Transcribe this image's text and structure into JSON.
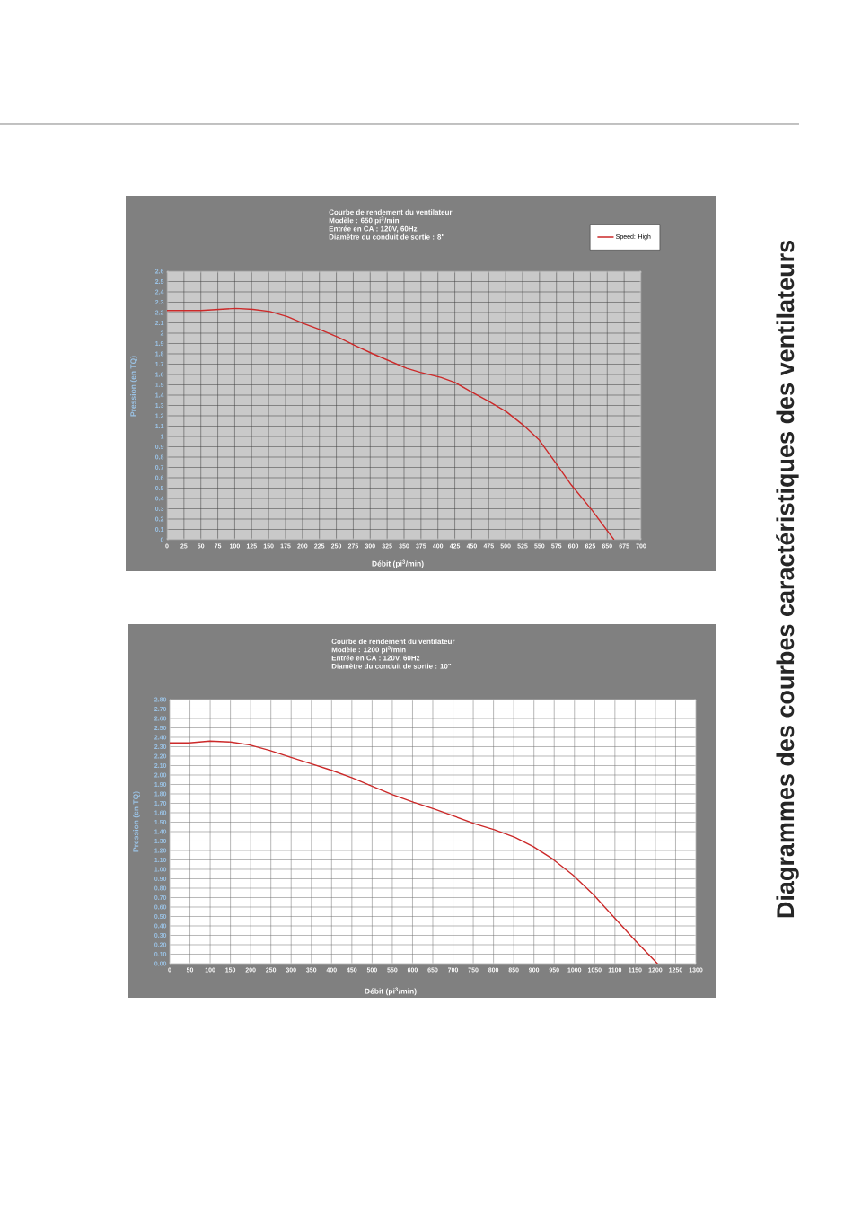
{
  "chart_data": [
    {
      "type": "line",
      "title": "Courbe de rendement du ventilateur",
      "subtitle": "Modèle : 650 pi$^{3}$/min",
      "annotations": [
        "Entrée en CA : 120V, 60Hz",
        "Diamètre du conduit de sortie : 8\"",
        "Diagrammes des courbes caractéristiques des ventilateurs"
      ],
      "xlabel": "Débit (pi$^{3}$/min)",
      "ylabel": "Pression (en TQ)",
      "x": [
        0,
        50,
        102,
        127,
        152,
        178,
        203,
        228,
        253,
        278,
        304,
        329,
        354,
        374,
        405,
        426,
        450,
        475,
        501,
        526,
        549,
        571,
        597,
        627,
        660
      ],
      "series": [
        {
          "name": "Speed: High",
          "color": "#cc2a2a",
          "values": [
            2.22,
            2.22,
            2.24,
            2.23,
            2.21,
            2.16,
            2.09,
            2.03,
            1.96,
            1.88,
            1.8,
            1.73,
            1.66,
            1.62,
            1.57,
            1.52,
            1.43,
            1.34,
            1.24,
            1.11,
            0.97,
            0.77,
            0.53,
            0.29,
            0
          ]
        }
      ],
      "xlim": [
        0,
        700
      ],
      "ylim": [
        0,
        2.6
      ],
      "xticks": [
        0,
        25,
        50,
        75,
        100,
        125,
        150,
        175,
        200,
        225,
        250,
        275,
        300,
        325,
        350,
        375,
        400,
        425,
        450,
        475,
        500,
        525,
        550,
        575,
        600,
        625,
        650,
        675,
        700
      ],
      "yticks": [
        0,
        0.1,
        0.2,
        0.3,
        0.4,
        0.5,
        0.6,
        0.7,
        0.8,
        0.9,
        1,
        1.1,
        1.2,
        1.3,
        1.4,
        1.5,
        1.6,
        1.7,
        1.8,
        1.9,
        2,
        2.1,
        2.2,
        2.3,
        2.4,
        2.5,
        2.6
      ],
      "grid": true,
      "legend": "top right",
      "line_style": "solid"
    },
    {
      "type": "line",
      "title": "Courbe de rendement du ventilateur",
      "subtitle": "Modèle : 1200 pi$^{3}$/min",
      "annotations": [
        "Entrée en CA : 120V, 60Hz",
        "Diamètre du conduit de sortie : 10\""
      ],
      "xlabel": "Débit (pi$^{3}$/min)",
      "ylabel": "Pression (en TQ)",
      "x": [
        0,
        48,
        99,
        150,
        196,
        247,
        298,
        349,
        400,
        451,
        501,
        552,
        603,
        654,
        705,
        756,
        802,
        853,
        899,
        946,
        996,
        1047,
        1098,
        1149,
        1205
      ],
      "series": [
        {
          "color": "#cc2a2a",
          "values": [
            2.34,
            2.34,
            2.36,
            2.35,
            2.32,
            2.26,
            2.19,
            2.12,
            2.05,
            1.97,
            1.88,
            1.79,
            1.71,
            1.64,
            1.56,
            1.48,
            1.42,
            1.34,
            1.24,
            1.11,
            0.94,
            0.73,
            0.49,
            0.25,
            0
          ]
        }
      ],
      "xlim": [
        0,
        1300
      ],
      "ylim": [
        0,
        2.8
      ],
      "xticks": [
        0,
        50,
        100,
        150,
        200,
        250,
        300,
        350,
        400,
        450,
        500,
        550,
        600,
        650,
        700,
        750,
        800,
        850,
        900,
        950,
        1000,
        1050,
        1100,
        1150,
        1200,
        1250,
        1300
      ],
      "yticks": [
        {
          "value": 0,
          "label": "0.00"
        },
        {
          "value": 0.1,
          "label": "0.10"
        },
        {
          "value": 0.2,
          "label": "0.20"
        },
        {
          "value": 0.3,
          "label": "0.30"
        },
        {
          "value": 0.4,
          "label": "0.40"
        },
        {
          "value": 0.5,
          "label": "0.50"
        },
        {
          "value": 0.6,
          "label": "0.60"
        },
        {
          "value": 0.7,
          "label": "0.70"
        },
        {
          "value": 0.8,
          "label": "0.80"
        },
        {
          "value": 0.9,
          "label": "0.90"
        },
        {
          "value": 1,
          "label": "1.00"
        },
        {
          "value": 1.1,
          "label": "1.10"
        },
        {
          "value": 1.2,
          "label": "1.20"
        },
        {
          "value": 1.3,
          "label": "1.30"
        },
        {
          "value": 1.4,
          "label": "1.40"
        },
        {
          "value": 1.5,
          "label": "1.50"
        },
        {
          "value": 1.6,
          "label": "1.60"
        },
        {
          "value": 1.7,
          "label": "1.70"
        },
        {
          "value": 1.8,
          "label": "1.80"
        },
        {
          "value": 1.9,
          "label": "1.90"
        },
        {
          "value": 2,
          "label": "2.00"
        },
        {
          "value": 2.1,
          "label": "2.10"
        },
        {
          "value": 2.2,
          "label": "2.20"
        },
        {
          "value": 2.3,
          "label": "2.30"
        },
        {
          "value": 2.4,
          "label": "2.40"
        },
        {
          "value": 2.5,
          "label": "2.50"
        },
        {
          "value": 2.6,
          "label": "2.60"
        },
        {
          "value": 2.7,
          "label": "2.70"
        },
        {
          "value": 2.8,
          "label": "2.80"
        }
      ],
      "grid": true,
      "line_style": "solid"
    }
  ]
}
